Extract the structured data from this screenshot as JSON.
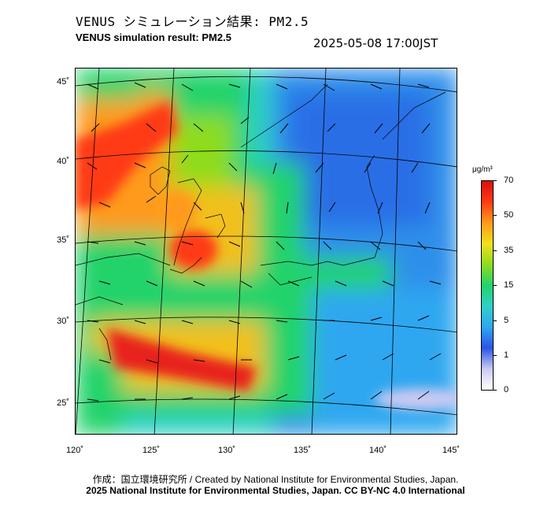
{
  "header": {
    "title_jp": "VENUS シミュレーション結果: PM2.5",
    "title_en": "VENUS simulation result: PM2.5",
    "datetime": "2025-05-08 17:00JST"
  },
  "map": {
    "lat_labels": [
      "45˚",
      "40˚",
      "35˚",
      "30˚",
      "25˚"
    ],
    "lon_labels": [
      "120˚",
      "125˚",
      "130˚",
      "135˚",
      "140˚",
      "145˚"
    ]
  },
  "colorbar": {
    "unit": "μg/m³",
    "ticks": [
      "70",
      "50",
      "35",
      "15",
      "5",
      "1",
      "0"
    ],
    "colors": [
      "#ffffff",
      "#c9c9f2",
      "#2b55e6",
      "#2fa7f0",
      "#2fd0c8",
      "#22d36a",
      "#8edc1f",
      "#f2e01a",
      "#ff9a1a",
      "#ff3a12",
      "#d81010"
    ]
  },
  "footer": {
    "credit_jp_en": "作成：国立環境研究所 / Created by National Institute for Environmental Studies, Japan.",
    "copyright": "2025 National Institute for Environmental Studies, Japan. CC BY-NC 4.0 International"
  }
}
